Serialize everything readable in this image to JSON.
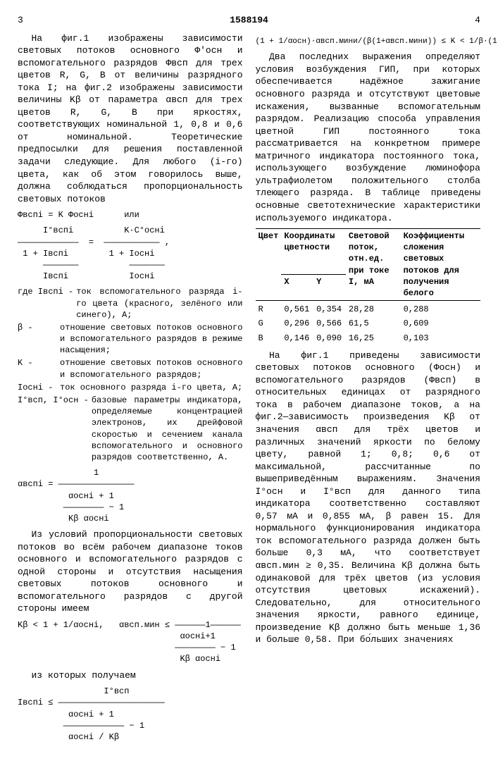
{
  "header": {
    "left_page": "3",
    "doc_number": "1588194",
    "right_page": "4"
  },
  "left_column": {
    "p1": "На фиг.1 изображены зависимости световых потоков основного Ф'осн и вспомогательного разрядов Фвсп для трех цветов R, G, B от величины разрядного тока I; на фиг.2 изображены зависимости величины Kβ от параметра αвсп для трех цветов R, G, B при яркостях, соответствующих номинальной 1, 0,8 и 0,6 от номинальной. Теоретические предпосылки для решения поставленной задачи следующие. Для любого (i-го) цвета, как об этом говорилось выше, должна соблюдаться пропорциональность световых потоков",
    "f1": "Фвспi = K Фоснi      или",
    "f2": "     I°вспi          K·C°оснi\n————————————  =  ——————————— ,\n 1 + Iвспi        1 + Iоснi\n     ———————          ———————\n     Iвспi            Iоснi",
    "defs": [
      {
        "term": "где Iвспi -",
        "text": "ток вспомогательного разряда i-го цвета (красного, зелёного или синего), А;"
      },
      {
        "term": "β -",
        "text": "отношение световых потоков основного и вспомогательного разрядов в режиме насыщения;"
      },
      {
        "term": "K -",
        "text": "отношение световых потоков основного и вспомогательного разрядов;"
      },
      {
        "term": "Iоснi -",
        "text": "ток основного разряда i-го цвета, А;"
      },
      {
        "term": "I°всп, I°осн -",
        "text": "базовые параметры индикатора, определяемые концентрацией электронов, их дрейфовой скоростью и сечением канала вспомогательного и основного разрядов соответственно, А."
      }
    ],
    "f3": "               1\nαвспi = ———————————————\n          αоснi + 1\n         ———————— − 1\n          Kβ αоснi",
    "p2": "Из условий пропорциональности световых потоков во всём рабочем диапазоне токов основного и вспомогательного разрядов с одной стороны и отсутствия насыщения световых потоков основного и вспомогательного разрядов с другой стороны имеем",
    "f4": "Kβ < 1 + 1/αоснi,   αвсп.мин ≤ ——————1——————\n                                αоснi+1\n                               ———————— − 1\n                                Kβ αоснi",
    "p3": "из которых получаем",
    "f5": "                 I°всп\nIвспi ≤ —————————————————————\n          αоснi + 1\n         ———————————— − 1\n          αоснi / Kβ"
  },
  "right_column": {
    "f_top": "(1 + 1/αосн)·αвсп.мини/(β(1+αвсп.мини)) ≤ K < 1/β·(1 + 1/αосн).",
    "p1": "Два последних выражения определяют условия возбуждения ГИП, при которых обеспечивается надёжное зажигание основного разряда и отсутствуют цветовые искажения, вызванные вспомогательным разрядом. Реализацию способа управления цветной ГИП постоянного тока рассматривается на конкретном примере матричного индикатора постоянного тока, использующего возбуждение люминофора ультрафиолетом положительного столба тлеющего разряда. В таблице приведены основные светотехнические характеристики используемого индикатора.",
    "table": {
      "columns": [
        "Цвет",
        "Координаты цветности",
        "",
        "Световой поток, отн.ед. при токе I, мА",
        "Коэффициенты сложения световых потоков для получения белого"
      ],
      "subcolumns": [
        "",
        "X",
        "Y",
        "",
        ""
      ],
      "rows": [
        [
          "R",
          "0,561",
          "0,354",
          "28,28",
          "0,288"
        ],
        [
          "G",
          "0,296",
          "0,566",
          "61,5",
          "0,609"
        ],
        [
          "B",
          "0,146",
          "0,090",
          "16,25",
          "0,103"
        ]
      ]
    },
    "p2": "На фиг.1 приведены зависимости световых потоков основного (Фосн) и вспомогательного разрядов (Фвсп) в относительных единицах от разрядного тока в рабочем диапазоне токов, а на фиг.2—зависимость произведения Kβ от значения αвсп для трёх цветов и различных значений яркости по белому цвету, равной 1; 0,8; 0,6 от максимальной, рассчитанные по вышеприведённым выражениям. Значения I°осн и I°всп для данного типа индикатора соответственно составляют 0,57 мА и 0,855 мА, β равен 15. Для нормального функционирования индикатора ток вспомогательного разряда должен быть больше 0,3 мА, что соответствует αвсп.мин ≥ 0,35. Величина Kβ должна быть одинаковой для трёх цветов (из условия отсутствия цветовых искажений). Следовательно, для относительного значения яркости, равного единице, произведение Kβ должно быть меньше 1,36 и больше 0,58. При бо́льших значениях"
  }
}
